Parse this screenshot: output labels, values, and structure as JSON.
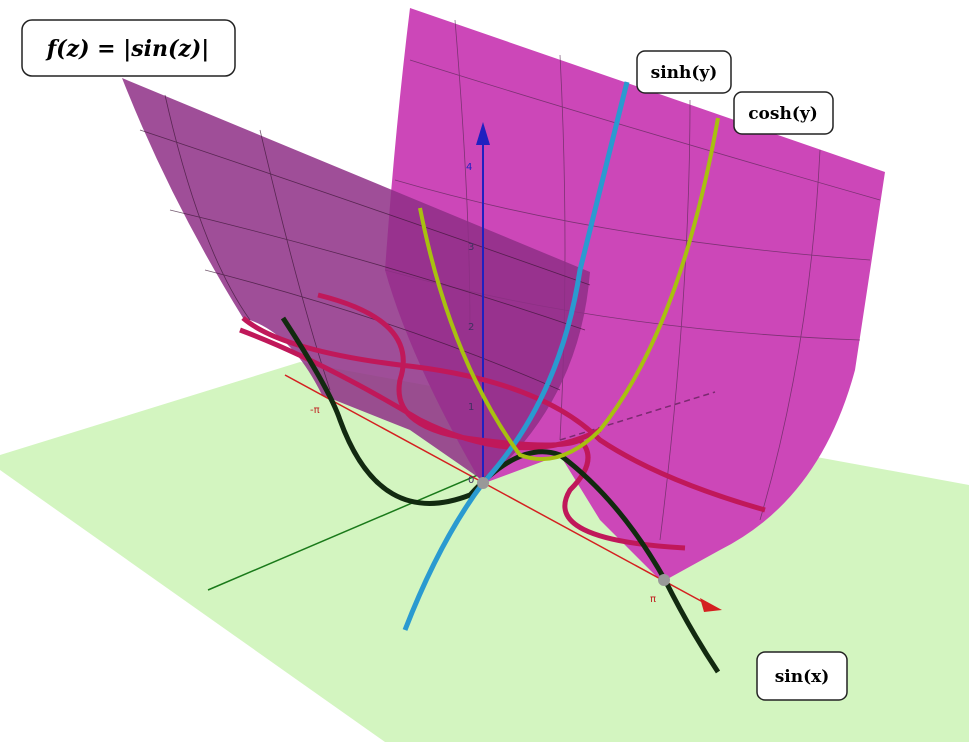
{
  "labels": {
    "function": "f(z) = |sin(z)|",
    "sinh": "sinh(y)",
    "cosh": "cosh(y)",
    "sin": "sin(x)"
  },
  "axis_ticks": {
    "z": [
      "1",
      "2",
      "3",
      "4"
    ],
    "origin": "0",
    "x": [
      "-π",
      "π"
    ]
  }
}
